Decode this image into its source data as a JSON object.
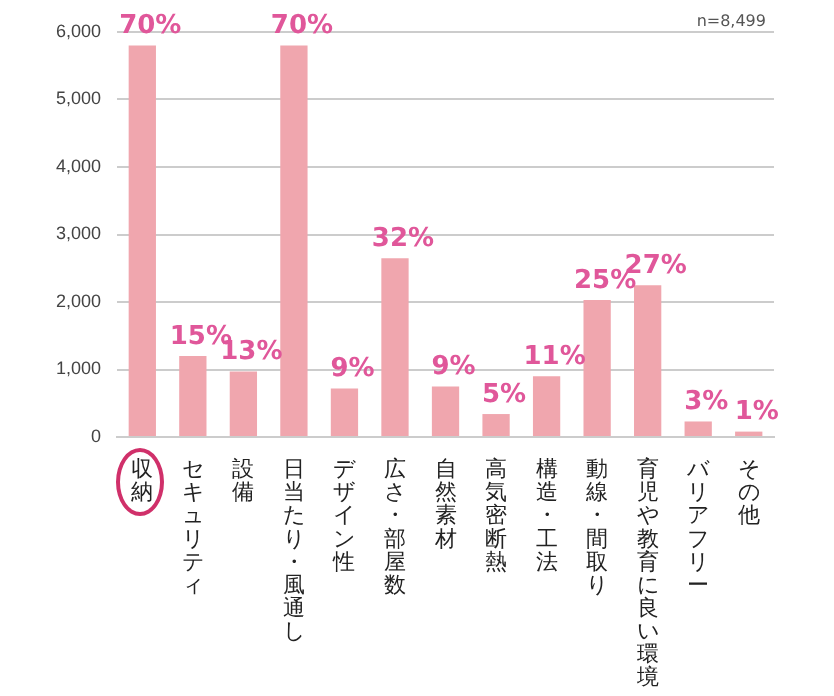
{
  "chart_data": {
    "type": "bar",
    "categories": [
      "収納",
      "セキュリティ",
      "設備",
      "日当たり・風通し",
      "デザイン性",
      "広さ・部屋数",
      "自然素材",
      "高気密断熱",
      "構造・工法",
      "動線・間取り",
      "育児や教育に良い環境",
      "バリアフリー",
      "その他"
    ],
    "values": [
      5800,
      1200,
      970,
      5800,
      720,
      2650,
      750,
      340,
      900,
      2030,
      2250,
      230,
      80
    ],
    "color": "#f0a6ae",
    "ylim": [
      0,
      6000
    ],
    "yticks": [
      {
        "value": 0,
        "label": "0"
      },
      {
        "value": 1000,
        "label": "1,000"
      },
      {
        "value": 2000,
        "label": "2,000"
      },
      {
        "value": 3000,
        "label": "3,000"
      },
      {
        "value": 4000,
        "label": "4,000"
      },
      {
        "value": 5000,
        "label": "5,000"
      },
      {
        "value": 6000,
        "label": "6,000"
      }
    ],
    "grid": "y",
    "legend": false,
    "annotations": [
      "n=8,499",
      {
        "text": "70%",
        "x": "収納",
        "y": 5800
      },
      {
        "text": "15%",
        "x": "セキュリティ",
        "y": 1200
      },
      {
        "text": "13%",
        "x": "設備",
        "y": 970
      },
      {
        "text": "70%",
        "x": "日当たり・風通し",
        "y": 5800
      },
      {
        "text": "9%",
        "x": "デザイン性",
        "y": 720
      },
      {
        "text": "32%",
        "x": "広さ・部屋数",
        "y": 2650
      },
      {
        "text": "9%",
        "x": "自然素材",
        "y": 750
      },
      {
        "text": "5%",
        "x": "高気密断熱",
        "y": 340
      },
      {
        "text": "11%",
        "x": "構造・工法",
        "y": 900
      },
      {
        "text": "25%",
        "x": "動線・間取り",
        "y": 2030
      },
      {
        "text": "27%",
        "x": "育児や教育に良い環境",
        "y": 2250
      },
      {
        "text": "3%",
        "x": "バリアフリー",
        "y": 230
      },
      {
        "text": "1%",
        "x": "その他",
        "y": 80
      }
    ]
  }
}
